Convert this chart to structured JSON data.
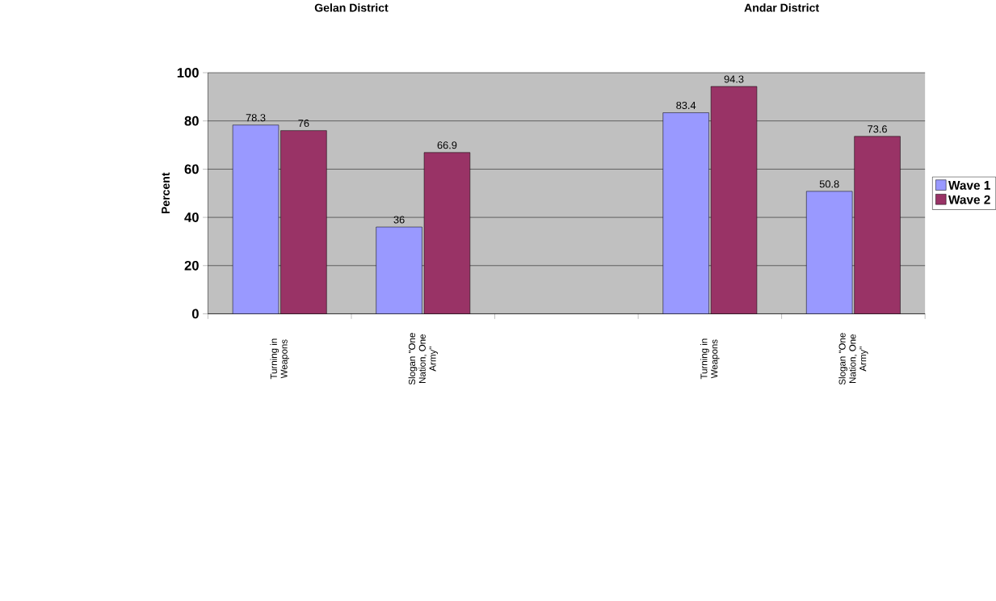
{
  "chart_data": {
    "type": "bar",
    "annotations": [
      "Gelan District",
      "Andar District"
    ],
    "ylabel": "Percent",
    "categories": [
      "Turning in Weapons",
      "Slogan \"One Nation, One Army\"",
      null,
      "Turning in Weapons",
      "Slogan \"One Nation, One Army\""
    ],
    "series": [
      {
        "name": "Wave 1",
        "color": "#9999ff",
        "values": [
          78.3,
          36,
          null,
          83.4,
          50.8
        ]
      },
      {
        "name": "Wave 2",
        "color": "#993366",
        "values": [
          76,
          66.9,
          null,
          94.3,
          73.6
        ]
      }
    ],
    "ylim": [
      0,
      100
    ],
    "yticks": [
      0,
      20,
      40,
      60,
      80,
      100
    ],
    "grid": "y",
    "legend": "right",
    "data_labels": true
  }
}
